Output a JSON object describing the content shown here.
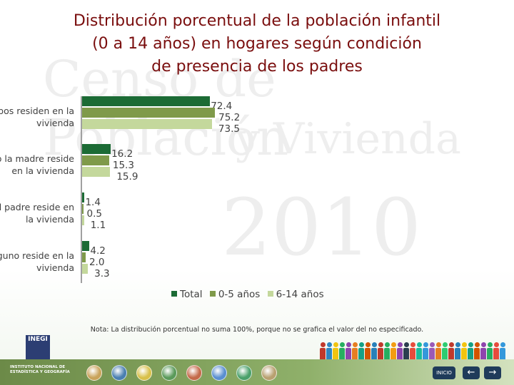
{
  "title_lines": [
    "Distribución porcentual de la población infantil",
    "(0 a 14 años) en hogares según condición",
    "de presencia de los padres"
  ],
  "watermark": {
    "line1": "Censo de Población",
    "line2": "y Vivienda",
    "line3": "2010"
  },
  "chart_data": {
    "type": "bar",
    "orientation": "horizontal",
    "title": "Distribución porcentual de la población infantil (0 a 14 años) en hogares según condición de presencia de los padres",
    "categories": [
      "Ambos residen en la vivienda",
      "Sólo la madre reside en la vivienda",
      "Sólo el padre reside en la vivienda",
      "Ninguno reside en la vivienda"
    ],
    "category_display": [
      [
        "nbos residen en la",
        "vivienda"
      ],
      [
        "lo la madre reside",
        "en la vivienda"
      ],
      [
        "el padre reside en",
        "la vivienda"
      ],
      [
        "nguno reside en la",
        "vivienda"
      ]
    ],
    "series": [
      {
        "name": "Total",
        "color": "#1c6b35",
        "values": [
          72.4,
          16.2,
          1.4,
          4.2
        ]
      },
      {
        "name": "0-5 años",
        "color": "#7f9a4a",
        "values": [
          75.2,
          15.3,
          0.5,
          2.0
        ]
      },
      {
        "name": "6-14 años",
        "color": "#c4d89c",
        "values": [
          73.5,
          15.9,
          1.1,
          3.3
        ]
      }
    ],
    "value_labels": [
      [
        "72.4",
        "75.2",
        "73.5"
      ],
      [
        "16.2",
        "15.3",
        "15.9"
      ],
      [
        "1.4",
        "0.5",
        "1.1"
      ],
      [
        "4.2",
        "2.0",
        "3.3"
      ]
    ],
    "xlim": [
      0,
      100
    ],
    "grid": false,
    "legend_position": "bottom"
  },
  "note": "Nota: La distribución porcentual no suma 100%, porque no se grafica el valor del no especificado.",
  "footer": {
    "logo_text": "INEGI",
    "logo_name": "INSTITUTO NACIONAL DE ESTADÍSTICA Y GEOGRAFÍA",
    "home_label": "INICIO",
    "back_glyph": "←",
    "forward_glyph": "→",
    "circle_colors": [
      "#c9a35a",
      "#4a7fb0",
      "#d8c04a",
      "#5a9a5a",
      "#c46a4a",
      "#5a8fd0",
      "#4aa06a",
      "#b8a070"
    ],
    "people_colors": [
      "#c0392b",
      "#2e86c1",
      "#f1c40f",
      "#27ae60",
      "#8e44ad",
      "#e67e22",
      "#16a085",
      "#d35400",
      "#2980b9",
      "#c0392b",
      "#27ae60",
      "#f39c12",
      "#8e44ad",
      "#2c3e50",
      "#e74c3c",
      "#1abc9c",
      "#3498db",
      "#9b59b6",
      "#e67e22",
      "#2ecc71",
      "#c0392b",
      "#2980b9",
      "#f1c40f",
      "#16a085",
      "#d35400",
      "#8e44ad",
      "#27ae60",
      "#e74c3c",
      "#3498db"
    ]
  }
}
